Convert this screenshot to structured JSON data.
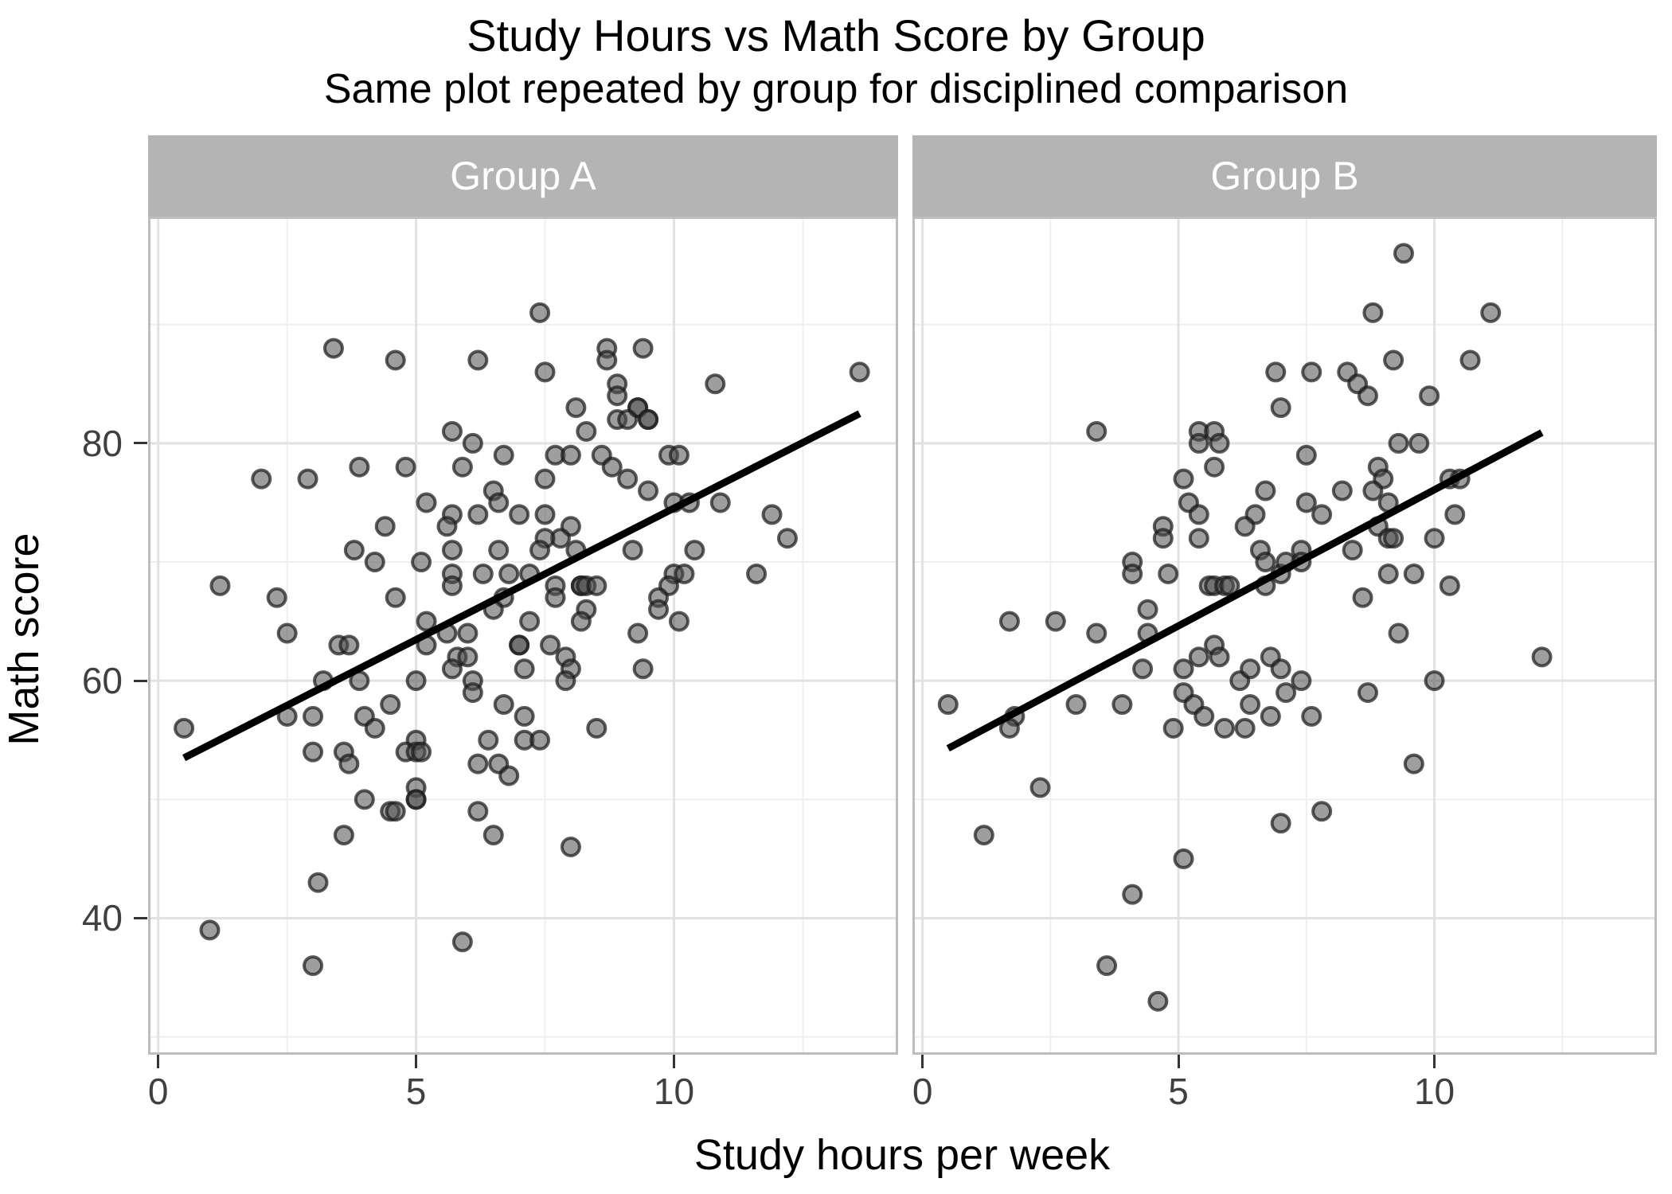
{
  "title": "Study Hours vs Math Score by Group",
  "subtitle": "Same plot repeated by group for disciplined comparison",
  "chart_data": {
    "type": "scatter",
    "title": "Study Hours vs Math Score by Group",
    "subtitle": "Same plot repeated by group for disciplined comparison",
    "xlabel": "Study hours per week",
    "ylabel": "Math score",
    "facets": [
      "Group A",
      "Group B"
    ],
    "x_ticks": [
      0,
      5,
      10
    ],
    "y_ticks": [
      40,
      60,
      80
    ],
    "x_minor": [
      2.5,
      7.5,
      12.5
    ],
    "y_minor": [
      30,
      50,
      70,
      90
    ],
    "xlim": [
      -0.15,
      14.3
    ],
    "ylim": [
      28.7,
      98.9
    ],
    "grid": "on",
    "legend": "none",
    "point_radius": 11,
    "colors": {
      "point_fill": "#4f4f4f",
      "point_stroke": "#1c1c1c",
      "trend": "#000000",
      "strip_bg": "#b4b4b4",
      "strip_text": "#ffffff",
      "grid_major": "#e2e2e2",
      "grid_minor": "#efefef",
      "panel_border": "#bdbdbd",
      "tick_label": "#404040"
    },
    "panels": [
      {
        "label": "Group A",
        "trend": {
          "x1": 0.5,
          "y1": 53.5,
          "x2": 13.6,
          "y2": 82.5
        },
        "points": [
          [
            3.4,
            88
          ],
          [
            4.6,
            87
          ],
          [
            6.2,
            87
          ],
          [
            5.7,
            81
          ],
          [
            6.1,
            80
          ],
          [
            6.7,
            79
          ],
          [
            3.9,
            78
          ],
          [
            4.8,
            78
          ],
          [
            5.9,
            78
          ],
          [
            2.0,
            77
          ],
          [
            2.9,
            77
          ],
          [
            6.5,
            76
          ],
          [
            5.2,
            75
          ],
          [
            6.6,
            75
          ],
          [
            5.7,
            74
          ],
          [
            6.2,
            74
          ],
          [
            7.0,
            74
          ],
          [
            4.4,
            73
          ],
          [
            5.6,
            73
          ],
          [
            3.8,
            71
          ],
          [
            5.7,
            71
          ],
          [
            6.6,
            71
          ],
          [
            4.2,
            70
          ],
          [
            5.1,
            70
          ],
          [
            5.7,
            69
          ],
          [
            6.3,
            69
          ],
          [
            6.8,
            69
          ],
          [
            5.7,
            68
          ],
          [
            1.2,
            68
          ],
          [
            2.3,
            67
          ],
          [
            4.6,
            67
          ],
          [
            6.7,
            67
          ],
          [
            6.5,
            66
          ],
          [
            5.2,
            65
          ],
          [
            2.5,
            64
          ],
          [
            7.2,
            69
          ],
          [
            7.2,
            65
          ],
          [
            7.5,
            74
          ],
          [
            8.0,
            73
          ],
          [
            7.8,
            72
          ],
          [
            7.5,
            72
          ],
          [
            7.4,
            71
          ],
          [
            8.1,
            71
          ],
          [
            8.2,
            68
          ],
          [
            8.2,
            68
          ],
          [
            8.3,
            68
          ],
          [
            8.5,
            68
          ],
          [
            7.7,
            68
          ],
          [
            7.7,
            67
          ],
          [
            8.3,
            66
          ],
          [
            8.2,
            65
          ],
          [
            9.2,
            71
          ],
          [
            7.4,
            91
          ],
          [
            8.7,
            88
          ],
          [
            9.4,
            88
          ],
          [
            8.7,
            87
          ],
          [
            7.5,
            86
          ],
          [
            13.6,
            86
          ],
          [
            10.8,
            85
          ],
          [
            8.9,
            85
          ],
          [
            8.9,
            84
          ],
          [
            9.3,
            83
          ],
          [
            9.3,
            83
          ],
          [
            8.1,
            83
          ],
          [
            9.5,
            82
          ],
          [
            9.5,
            82
          ],
          [
            8.9,
            82
          ],
          [
            9.1,
            82
          ],
          [
            8.3,
            81
          ],
          [
            7.7,
            79
          ],
          [
            8.0,
            79
          ],
          [
            8.6,
            79
          ],
          [
            9.9,
            79
          ],
          [
            10.1,
            79
          ],
          [
            8.8,
            78
          ],
          [
            7.5,
            77
          ],
          [
            9.1,
            77
          ],
          [
            9.5,
            76
          ],
          [
            10.0,
            75
          ],
          [
            10.3,
            75
          ],
          [
            10.9,
            75
          ],
          [
            11.9,
            74
          ],
          [
            12.2,
            72
          ],
          [
            10.4,
            71
          ],
          [
            10.0,
            69
          ],
          [
            10.2,
            69
          ],
          [
            11.6,
            69
          ],
          [
            9.9,
            68
          ],
          [
            9.7,
            67
          ],
          [
            9.7,
            66
          ],
          [
            10.1,
            65
          ],
          [
            9.3,
            64
          ],
          [
            3.5,
            63
          ],
          [
            3.7,
            63
          ],
          [
            5.2,
            63
          ],
          [
            5.6,
            64
          ],
          [
            6.0,
            64
          ],
          [
            5.8,
            62
          ],
          [
            6.0,
            62
          ],
          [
            5.7,
            61
          ],
          [
            7.1,
            61
          ],
          [
            7.0,
            63
          ],
          [
            7.0,
            63
          ],
          [
            3.2,
            60
          ],
          [
            3.9,
            60
          ],
          [
            5.0,
            60
          ],
          [
            6.1,
            60
          ],
          [
            6.1,
            59
          ],
          [
            4.5,
            58
          ],
          [
            6.7,
            58
          ],
          [
            7.1,
            57
          ],
          [
            2.5,
            57
          ],
          [
            3.0,
            57
          ],
          [
            4.0,
            57
          ],
          [
            4.2,
            56
          ],
          [
            0.5,
            56
          ],
          [
            6.4,
            55
          ],
          [
            7.1,
            55
          ],
          [
            5.0,
            55
          ],
          [
            4.8,
            54
          ],
          [
            5.0,
            54
          ],
          [
            5.1,
            54
          ],
          [
            3.0,
            54
          ],
          [
            3.6,
            54
          ],
          [
            3.7,
            53
          ],
          [
            6.2,
            53
          ],
          [
            6.6,
            53
          ],
          [
            6.8,
            52
          ],
          [
            5.0,
            51
          ],
          [
            5.0,
            50
          ],
          [
            5.0,
            50
          ],
          [
            4.0,
            50
          ],
          [
            4.5,
            49
          ],
          [
            4.6,
            49
          ],
          [
            6.2,
            49
          ],
          [
            3.6,
            47
          ],
          [
            6.5,
            47
          ],
          [
            3.1,
            43
          ],
          [
            1.0,
            39
          ],
          [
            5.9,
            38
          ],
          [
            3.0,
            36
          ],
          [
            7.6,
            63
          ],
          [
            7.9,
            62
          ],
          [
            8.0,
            61
          ],
          [
            7.9,
            60
          ],
          [
            9.4,
            61
          ],
          [
            8.5,
            56
          ],
          [
            7.4,
            55
          ],
          [
            8.0,
            46
          ]
        ]
      },
      {
        "label": "Group B",
        "trend": {
          "x1": 0.5,
          "y1": 54.3,
          "x2": 12.1,
          "y2": 80.9
        },
        "points": [
          [
            3.4,
            81
          ],
          [
            6.9,
            86
          ],
          [
            7.0,
            83
          ],
          [
            5.4,
            81
          ],
          [
            5.7,
            81
          ],
          [
            5.4,
            80
          ],
          [
            5.8,
            80
          ],
          [
            5.7,
            78
          ],
          [
            5.1,
            77
          ],
          [
            6.7,
            76
          ],
          [
            5.2,
            75
          ],
          [
            5.4,
            74
          ],
          [
            6.5,
            74
          ],
          [
            6.3,
            73
          ],
          [
            4.7,
            73
          ],
          [
            4.7,
            72
          ],
          [
            5.4,
            72
          ],
          [
            6.6,
            71
          ],
          [
            6.7,
            70
          ],
          [
            4.1,
            70
          ],
          [
            4.1,
            69
          ],
          [
            4.8,
            69
          ],
          [
            5.6,
            68
          ],
          [
            5.7,
            68
          ],
          [
            5.9,
            68
          ],
          [
            6.0,
            68
          ],
          [
            6.7,
            68
          ],
          [
            7.0,
            69
          ],
          [
            7.1,
            70
          ],
          [
            4.4,
            66
          ],
          [
            1.7,
            65
          ],
          [
            2.6,
            65
          ],
          [
            3.4,
            64
          ],
          [
            4.4,
            64
          ],
          [
            9.4,
            96
          ],
          [
            8.8,
            91
          ],
          [
            11.1,
            91
          ],
          [
            9.2,
            87
          ],
          [
            10.7,
            87
          ],
          [
            7.6,
            86
          ],
          [
            8.3,
            86
          ],
          [
            8.5,
            85
          ],
          [
            8.7,
            84
          ],
          [
            9.9,
            84
          ],
          [
            9.3,
            80
          ],
          [
            9.7,
            80
          ],
          [
            7.5,
            79
          ],
          [
            8.9,
            78
          ],
          [
            9.0,
            77
          ],
          [
            10.3,
            77
          ],
          [
            10.5,
            77
          ],
          [
            8.2,
            76
          ],
          [
            8.8,
            76
          ],
          [
            7.5,
            75
          ],
          [
            9.1,
            75
          ],
          [
            7.8,
            74
          ],
          [
            10.4,
            74
          ],
          [
            8.9,
            73
          ],
          [
            9.1,
            72
          ],
          [
            9.2,
            72
          ],
          [
            10.0,
            72
          ],
          [
            8.4,
            71
          ],
          [
            7.4,
            71
          ],
          [
            7.4,
            70
          ],
          [
            9.1,
            69
          ],
          [
            9.6,
            69
          ],
          [
            10.3,
            68
          ],
          [
            8.6,
            67
          ],
          [
            9.3,
            64
          ],
          [
            0.5,
            58
          ],
          [
            1.8,
            57
          ],
          [
            1.7,
            56
          ],
          [
            3.0,
            58
          ],
          [
            3.9,
            58
          ],
          [
            4.3,
            61
          ],
          [
            5.1,
            61
          ],
          [
            5.4,
            62
          ],
          [
            5.7,
            63
          ],
          [
            5.8,
            62
          ],
          [
            5.1,
            59
          ],
          [
            5.3,
            58
          ],
          [
            5.5,
            57
          ],
          [
            4.9,
            56
          ],
          [
            5.9,
            56
          ],
          [
            6.3,
            56
          ],
          [
            6.2,
            60
          ],
          [
            6.4,
            61
          ],
          [
            6.4,
            58
          ],
          [
            6.8,
            62
          ],
          [
            7.0,
            61
          ],
          [
            6.8,
            57
          ],
          [
            7.1,
            59
          ],
          [
            2.3,
            51
          ],
          [
            1.2,
            47
          ],
          [
            7.0,
            48
          ],
          [
            5.1,
            45
          ],
          [
            4.1,
            42
          ],
          [
            3.6,
            36
          ],
          [
            4.6,
            33
          ],
          [
            12.1,
            62
          ],
          [
            7.4,
            60
          ],
          [
            8.7,
            59
          ],
          [
            7.6,
            57
          ],
          [
            10.0,
            60
          ],
          [
            9.6,
            53
          ],
          [
            7.8,
            49
          ]
        ]
      }
    ]
  }
}
